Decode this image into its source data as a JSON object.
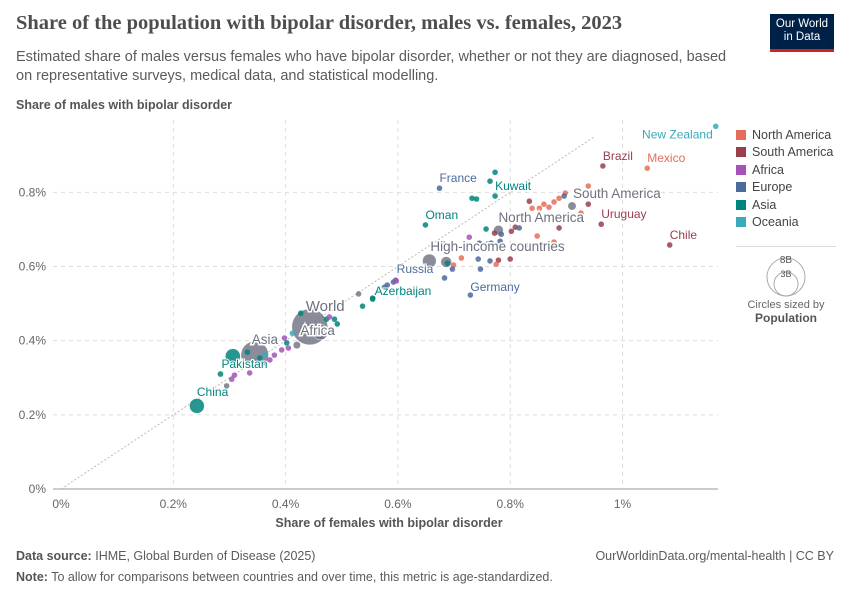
{
  "header": {
    "title": "Share of the population with bipolar disorder, males vs. females, 2023",
    "subtitle": "Estimated share of males versus females who have bipolar disorder, whether or not they are diagnosed, based on representative surveys, medical data, and statistical modelling.",
    "logo_line1": "Our World",
    "logo_line2": "in Data"
  },
  "footer": {
    "source_label": "Data source:",
    "source": "IHME, Global Burden of Disease (2025)",
    "url_license": "OurWorldinData.org/mental-health | CC BY",
    "note_label": "Note:",
    "note": "To allow for comparisons between countries and over time, this metric is age-standardized."
  },
  "legend": {
    "items": [
      {
        "label": "North America",
        "color": "#e56e5a"
      },
      {
        "label": "South America",
        "color": "#9a3e4d"
      },
      {
        "label": "Africa",
        "color": "#a652ba"
      },
      {
        "label": "Europe",
        "color": "#4c6a9c"
      },
      {
        "label": "Asia",
        "color": "#00847e"
      },
      {
        "label": "Oceania",
        "color": "#38aaba"
      }
    ],
    "size_big": "8B",
    "size_small": "3B",
    "size_caption": "Circles sized by",
    "size_variable": "Population"
  },
  "chart_data": {
    "type": "scatter",
    "title": "Share of the population with bipolar disorder, males vs. females, 2023",
    "xlabel": "Share of females with bipolar disorder",
    "ylabel": "Share of males with bipolar disorder",
    "xlim": [
      0,
      1.17
    ],
    "ylim": [
      0,
      0.995
    ],
    "x_ticks": [
      {
        "v": 0,
        "label": "0%"
      },
      {
        "v": 0.2,
        "label": "0.2%"
      },
      {
        "v": 0.4,
        "label": "0.4%"
      },
      {
        "v": 0.6,
        "label": "0.6%"
      },
      {
        "v": 0.8,
        "label": "0.8%"
      },
      {
        "v": 1,
        "label": "1%"
      }
    ],
    "y_ticks": [
      {
        "v": 0,
        "label": "0%"
      },
      {
        "v": 0.2,
        "label": "0.2%"
      },
      {
        "v": 0.4,
        "label": "0.4%"
      },
      {
        "v": 0.6,
        "label": "0.6%"
      },
      {
        "v": 0.8,
        "label": "0.8%"
      }
    ],
    "grid": true,
    "diagonal_reference_line": true,
    "legend_position": "right",
    "aggregate_color": "#6d7180",
    "labeled_points": [
      {
        "name": "New Zealand",
        "region": "Oceania",
        "x": 1.166,
        "y": 0.978
      },
      {
        "name": "Brazil",
        "region": "South America",
        "x": 0.965,
        "y": 0.871,
        "pop": 0.21
      },
      {
        "name": "Mexico",
        "region": "North America",
        "x": 1.044,
        "y": 0.865,
        "pop": 0.13
      },
      {
        "name": "France",
        "region": "Europe",
        "x": 0.674,
        "y": 0.811
      },
      {
        "name": "Kuwait",
        "region": "Asia",
        "x": 0.773,
        "y": 0.79
      },
      {
        "name": "Oman",
        "region": "Asia",
        "x": 0.649,
        "y": 0.712
      },
      {
        "name": "Uruguay",
        "region": "South America",
        "x": 0.962,
        "y": 0.714
      },
      {
        "name": "Chile",
        "region": "South America",
        "x": 1.084,
        "y": 0.658
      },
      {
        "name": "Russia",
        "region": "Europe",
        "x": 0.596,
        "y": 0.563,
        "pop": 0.14
      },
      {
        "name": "Germany",
        "region": "Europe",
        "x": 0.729,
        "y": 0.523
      },
      {
        "name": "Azerbaijan",
        "region": "Asia",
        "x": 0.555,
        "y": 0.515
      },
      {
        "name": "Pakistan",
        "region": "Asia",
        "x": 0.284,
        "y": 0.31,
        "pop": 0.24
      },
      {
        "name": "China",
        "region": "Asia",
        "x": 0.242,
        "y": 0.224,
        "pop": 1.41
      },
      {
        "name": "South America",
        "region": "aggregate",
        "x": 0.91,
        "y": 0.763,
        "pop": 0.44
      },
      {
        "name": "North America",
        "region": "aggregate",
        "x": 0.779,
        "y": 0.698,
        "pop": 0.6
      },
      {
        "name": "High-income countries",
        "region": "aggregate",
        "x": 0.656,
        "y": 0.615,
        "pop": 1.2
      },
      {
        "name": "World",
        "region": "aggregate",
        "x": 0.443,
        "y": 0.437,
        "pop": 8.1
      },
      {
        "name": "Africa",
        "region": "aggregate",
        "x": 0.462,
        "y": 0.423,
        "pop": 1.5
      },
      {
        "name": "Asia",
        "region": "aggregate",
        "x": 0.345,
        "y": 0.361,
        "pop": 4.8
      }
    ],
    "points": [
      {
        "region": "Asia",
        "x": 0.773,
        "y": 0.854
      },
      {
        "region": "Asia",
        "x": 0.764,
        "y": 0.83
      },
      {
        "region": "Asia",
        "x": 0.732,
        "y": 0.784
      },
      {
        "region": "Asia",
        "x": 0.74,
        "y": 0.782
      },
      {
        "region": "Asia",
        "x": 0.757,
        "y": 0.701
      },
      {
        "region": "Asia",
        "x": 0.679,
        "y": 0.663
      },
      {
        "region": "Asia",
        "x": 0.537,
        "y": 0.493
      },
      {
        "region": "Asia",
        "x": 0.555,
        "y": 0.512
      },
      {
        "region": "Asia",
        "x": 0.688,
        "y": 0.609
      },
      {
        "region": "Asia",
        "x": 0.427,
        "y": 0.474
      },
      {
        "region": "Asia",
        "x": 0.473,
        "y": 0.458
      },
      {
        "region": "Asia",
        "x": 0.487,
        "y": 0.458
      },
      {
        "region": "Asia",
        "x": 0.492,
        "y": 0.445
      },
      {
        "region": "Asia",
        "x": 0.332,
        "y": 0.369
      },
      {
        "region": "Asia",
        "x": 0.354,
        "y": 0.353
      },
      {
        "region": "Asia",
        "x": 0.402,
        "y": 0.394
      },
      {
        "region": "Asia",
        "x": 0.306,
        "y": 0.358,
        "pop": 1.44
      },
      {
        "region": "South America",
        "x": 0.834,
        "y": 0.776
      },
      {
        "region": "South America",
        "x": 0.939,
        "y": 0.768
      },
      {
        "region": "South America",
        "x": 0.887,
        "y": 0.704
      },
      {
        "region": "South America",
        "x": 0.802,
        "y": 0.695
      },
      {
        "region": "South America",
        "x": 0.809,
        "y": 0.706
      },
      {
        "region": "South America",
        "x": 0.8,
        "y": 0.62
      },
      {
        "region": "South America",
        "x": 0.779,
        "y": 0.617
      },
      {
        "region": "South America",
        "x": 0.772,
        "y": 0.69
      },
      {
        "region": "North America",
        "x": 0.939,
        "y": 0.817
      },
      {
        "region": "North America",
        "x": 0.839,
        "y": 0.757
      },
      {
        "region": "North America",
        "x": 0.852,
        "y": 0.757
      },
      {
        "region": "North America",
        "x": 0.86,
        "y": 0.768
      },
      {
        "region": "North America",
        "x": 0.869,
        "y": 0.76
      },
      {
        "region": "North America",
        "x": 0.878,
        "y": 0.774
      },
      {
        "region": "North America",
        "x": 0.887,
        "y": 0.784
      },
      {
        "region": "North America",
        "x": 0.898,
        "y": 0.798
      },
      {
        "region": "North America",
        "x": 0.926,
        "y": 0.744
      },
      {
        "region": "North America",
        "x": 0.848,
        "y": 0.682
      },
      {
        "region": "North America",
        "x": 0.878,
        "y": 0.666
      },
      {
        "region": "North America",
        "x": 0.832,
        "y": 0.658
      },
      {
        "region": "North America",
        "x": 0.713,
        "y": 0.623
      },
      {
        "region": "North America",
        "x": 0.699,
        "y": 0.604
      },
      {
        "region": "North America",
        "x": 0.775,
        "y": 0.606
      },
      {
        "region": "Europe",
        "x": 0.896,
        "y": 0.79
      },
      {
        "region": "Europe",
        "x": 0.816,
        "y": 0.704
      },
      {
        "region": "Europe",
        "x": 0.784,
        "y": 0.687
      },
      {
        "region": "Europe",
        "x": 0.782,
        "y": 0.668
      },
      {
        "region": "Europe",
        "x": 0.766,
        "y": 0.663
      },
      {
        "region": "Europe",
        "x": 0.759,
        "y": 0.66
      },
      {
        "region": "Europe",
        "x": 0.745,
        "y": 0.663
      },
      {
        "region": "Europe",
        "x": 0.743,
        "y": 0.62
      },
      {
        "region": "Europe",
        "x": 0.764,
        "y": 0.615
      },
      {
        "region": "Europe",
        "x": 0.747,
        "y": 0.593
      },
      {
        "region": "Europe",
        "x": 0.697,
        "y": 0.593
      },
      {
        "region": "Europe",
        "x": 0.683,
        "y": 0.569
      },
      {
        "region": "Europe",
        "x": 0.581,
        "y": 0.55
      },
      {
        "region": "Europe",
        "x": 0.576,
        "y": 0.544
      },
      {
        "region": "Europe",
        "x": 0.592,
        "y": 0.558
      },
      {
        "region": "Africa",
        "x": 0.727,
        "y": 0.679
      },
      {
        "region": "Africa",
        "x": 0.597,
        "y": 0.561
      },
      {
        "region": "Africa",
        "x": 0.478,
        "y": 0.464
      },
      {
        "region": "Africa",
        "x": 0.398,
        "y": 0.407
      },
      {
        "region": "Africa",
        "x": 0.393,
        "y": 0.375
      },
      {
        "region": "Africa",
        "x": 0.38,
        "y": 0.361
      },
      {
        "region": "Africa",
        "x": 0.372,
        "y": 0.348
      },
      {
        "region": "Africa",
        "x": 0.359,
        "y": 0.34
      },
      {
        "region": "Africa",
        "x": 0.336,
        "y": 0.313
      },
      {
        "region": "Africa",
        "x": 0.304,
        "y": 0.296
      },
      {
        "region": "Africa",
        "x": 0.309,
        "y": 0.307
      },
      {
        "region": "Africa",
        "x": 0.405,
        "y": 0.38
      },
      {
        "region": "Oceania",
        "x": 0.412,
        "y": 0.42
      },
      {
        "region": "Oceania",
        "x": 0.363,
        "y": 0.361
      },
      {
        "region": "aggregate",
        "x": 0.686,
        "y": 0.612,
        "pop": 0.74
      },
      {
        "region": "aggregate",
        "x": 0.42,
        "y": 0.388,
        "pop": 0.35
      },
      {
        "region": "aggregate",
        "x": 0.53,
        "y": 0.526
      },
      {
        "region": "aggregate",
        "x": 0.295,
        "y": 0.278
      }
    ]
  }
}
